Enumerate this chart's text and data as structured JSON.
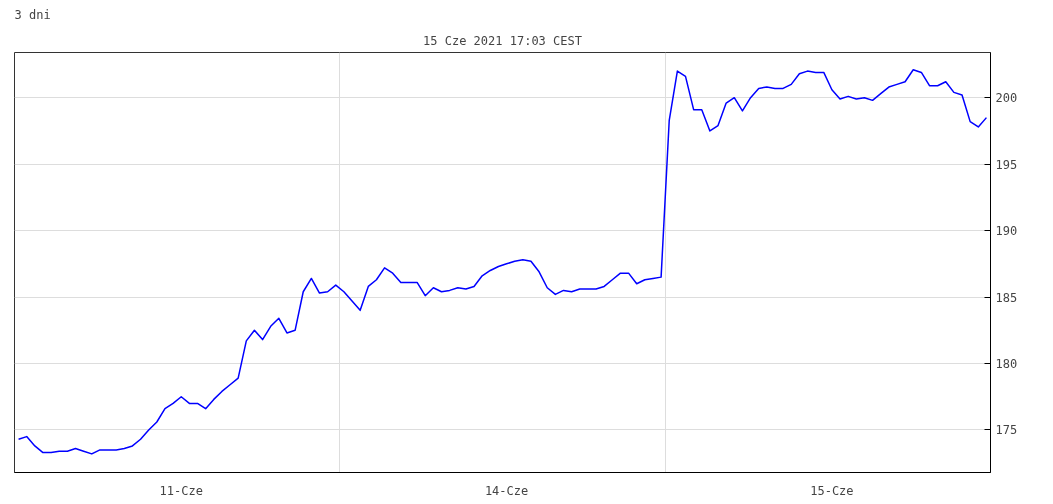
{
  "chart_data": {
    "type": "line",
    "title": "3 dni",
    "subtitle": "15 Cze 2021 17:03 CEST",
    "categories": [
      null,
      null,
      null,
      null,
      null,
      null,
      null,
      null,
      null,
      null,
      null,
      null,
      null,
      null,
      null,
      null,
      null,
      null,
      null,
      null,
      "11-Cze",
      null,
      null,
      null,
      null,
      null,
      null,
      null,
      null,
      null,
      null,
      null,
      null,
      null,
      null,
      null,
      null,
      null,
      null,
      null,
      null,
      null,
      null,
      null,
      null,
      null,
      null,
      null,
      null,
      null,
      null,
      null,
      null,
      null,
      null,
      null,
      null,
      null,
      null,
      null,
      "14-Cze",
      null,
      null,
      null,
      null,
      null,
      null,
      null,
      null,
      null,
      null,
      null,
      null,
      null,
      null,
      null,
      null,
      null,
      null,
      null,
      null,
      null,
      null,
      null,
      null,
      null,
      null,
      null,
      null,
      null,
      null,
      null,
      null,
      null,
      null,
      null,
      null,
      null,
      null,
      null,
      "15-Cze",
      null,
      null,
      null,
      null,
      null,
      null,
      null,
      null,
      null,
      null,
      null,
      null,
      null,
      null,
      null,
      null,
      null,
      null,
      null
    ],
    "series": [
      {
        "color": "#0000ff",
        "values": [
          174.3,
          174.5,
          173.8,
          173.3,
          173.3,
          173.4,
          173.4,
          173.6,
          173.4,
          173.2,
          173.5,
          173.5,
          173.5,
          173.6,
          173.8,
          174.3,
          175.0,
          175.6,
          176.6,
          177.0,
          177.5,
          177.0,
          177.0,
          176.6,
          177.3,
          177.9,
          178.4,
          178.9,
          181.7,
          182.5,
          181.8,
          182.8,
          183.4,
          182.3,
          182.5,
          185.4,
          186.4,
          185.3,
          185.4,
          185.9,
          185.4,
          184.7,
          184.0,
          185.8,
          186.3,
          187.2,
          186.8,
          186.1,
          186.1,
          186.1,
          185.1,
          185.7,
          185.4,
          185.5,
          185.7,
          185.6,
          185.8,
          186.6,
          187.0,
          187.3,
          187.5,
          187.7,
          187.8,
          187.7,
          186.9,
          185.7,
          185.2,
          185.5,
          185.4,
          185.6,
          185.6,
          185.6,
          185.8,
          186.3,
          186.8,
          186.8,
          186.0,
          186.3,
          186.4,
          186.5,
          198.3,
          202.0,
          201.6,
          199.1,
          199.1,
          197.5,
          197.9,
          199.6,
          200.0,
          199.0,
          200.0,
          200.7,
          200.8,
          200.7,
          200.7,
          201.0,
          201.8,
          202.0,
          201.9,
          201.9,
          200.6,
          199.9,
          200.1,
          199.9,
          200.0,
          199.8,
          200.3,
          200.8,
          201.0,
          201.2,
          202.1,
          201.9,
          200.9,
          200.9,
          201.2,
          200.4,
          200.2,
          198.2,
          197.8,
          198.5
        ]
      }
    ],
    "ylim": [
      171.8,
      203.4
    ],
    "yticks": [
      175,
      180,
      185,
      190,
      195,
      200
    ],
    "grid": true,
    "marker": "none",
    "line_style": "solid"
  }
}
